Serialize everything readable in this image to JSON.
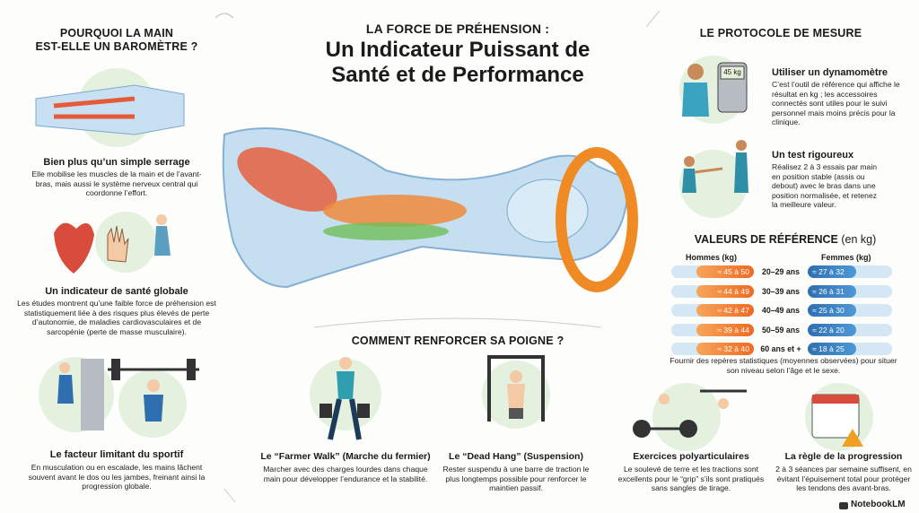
{
  "header": {
    "kicker": "LA FORCE DE PRÉHENSION :",
    "title_line1": "Un Indicateur Puissant de",
    "title_line2": "Santé et de Performance"
  },
  "why": {
    "heading_line1": "POURQUOI LA MAIN",
    "heading_line2": "EST-ELLE UN BAROMÈTRE ?",
    "items": [
      {
        "title": "Bien plus qu’un simple serrage",
        "text": "Elle mobilise les muscles de la main et de l’avant-bras, mais aussi le système nerveux central qui coordonne l’effort."
      },
      {
        "title": "Un indicateur de santé globale",
        "text": "Les études montrent qu’une faible force de préhension est statistiquement liée à des risques plus élevés de perte d’autonomie, de maladies cardiovasculaires et de sarcopénie (perte de masse musculaire)."
      },
      {
        "title": "Le facteur limitant du sportif",
        "text": "En musculation ou en escalade, les mains lâchent souvent avant le dos ou les jambes, freinant ainsi la progression globale."
      }
    ]
  },
  "protocol": {
    "heading": "LE PROTOCOLE DE MESURE",
    "display": "45 kg",
    "items": [
      {
        "title": "Utiliser un dynamomètre",
        "text": "C’est l’outil de référence qui affiche le résultat en kg ; les accessoires connectés sont utiles pour le suivi personnel mais moins précis pour la clinique."
      },
      {
        "title": "Un test rigoureux",
        "text": "Réalisez 2 à 3 essais par main en position stable (assis ou debout) avec le bras dans une position normalisée, et retenez la meilleure valeur."
      }
    ]
  },
  "reference": {
    "heading": "VALEURS DE RÉFÉRENCE",
    "unit": "(en kg)",
    "men_header": "Hommes (kg)",
    "women_header": "Femmes (kg)",
    "rows": [
      {
        "men": "≈ 45 à 50",
        "age": "20–29 ans",
        "women": "≈ 27 à 32"
      },
      {
        "men": "≈ 44 à 49",
        "age": "30–39 ans",
        "women": "≈ 26 à 31"
      },
      {
        "men": "≈ 42 à 47",
        "age": "40–49 ans",
        "women": "≈ 25 à 30"
      },
      {
        "men": "≈ 39 à 44",
        "age": "50–59 ans",
        "women": "≈ 22 à 20"
      },
      {
        "men": "≈ 32 à 40",
        "age": "60 ans et +",
        "women": "≈ 18 à 25"
      }
    ],
    "note": "Fournir des repères statistiques (moyennes observées) pour situer son niveau selon l’âge et le sexe."
  },
  "strengthen": {
    "heading": "COMMENT RENFORCER SA POIGNE ?",
    "items": [
      {
        "title": "Le “Farmer Walk” (Marche du fermier)",
        "text": "Marcher avec des charges lourdes dans chaque main pour développer l’endurance et la stabilité."
      },
      {
        "title": "Le “Dead Hang” (Suspension)",
        "text": "Rester suspendu à une barre de traction le plus longtemps possible pour renforcer le maintien passif."
      },
      {
        "title": "Exercices polyarticulaires",
        "text": "Le soulevé de terre et les tractions sont excellents pour le “grip” s’ils sont pratiqués sans sangles de tirage."
      },
      {
        "title": "La règle de la progression",
        "text": "2 à 3 séances par semaine suffisent, en évitant l’épuisement total pour protéger les tendons des avant-bras."
      }
    ]
  },
  "footer": {
    "brand": "NotebookLM"
  }
}
